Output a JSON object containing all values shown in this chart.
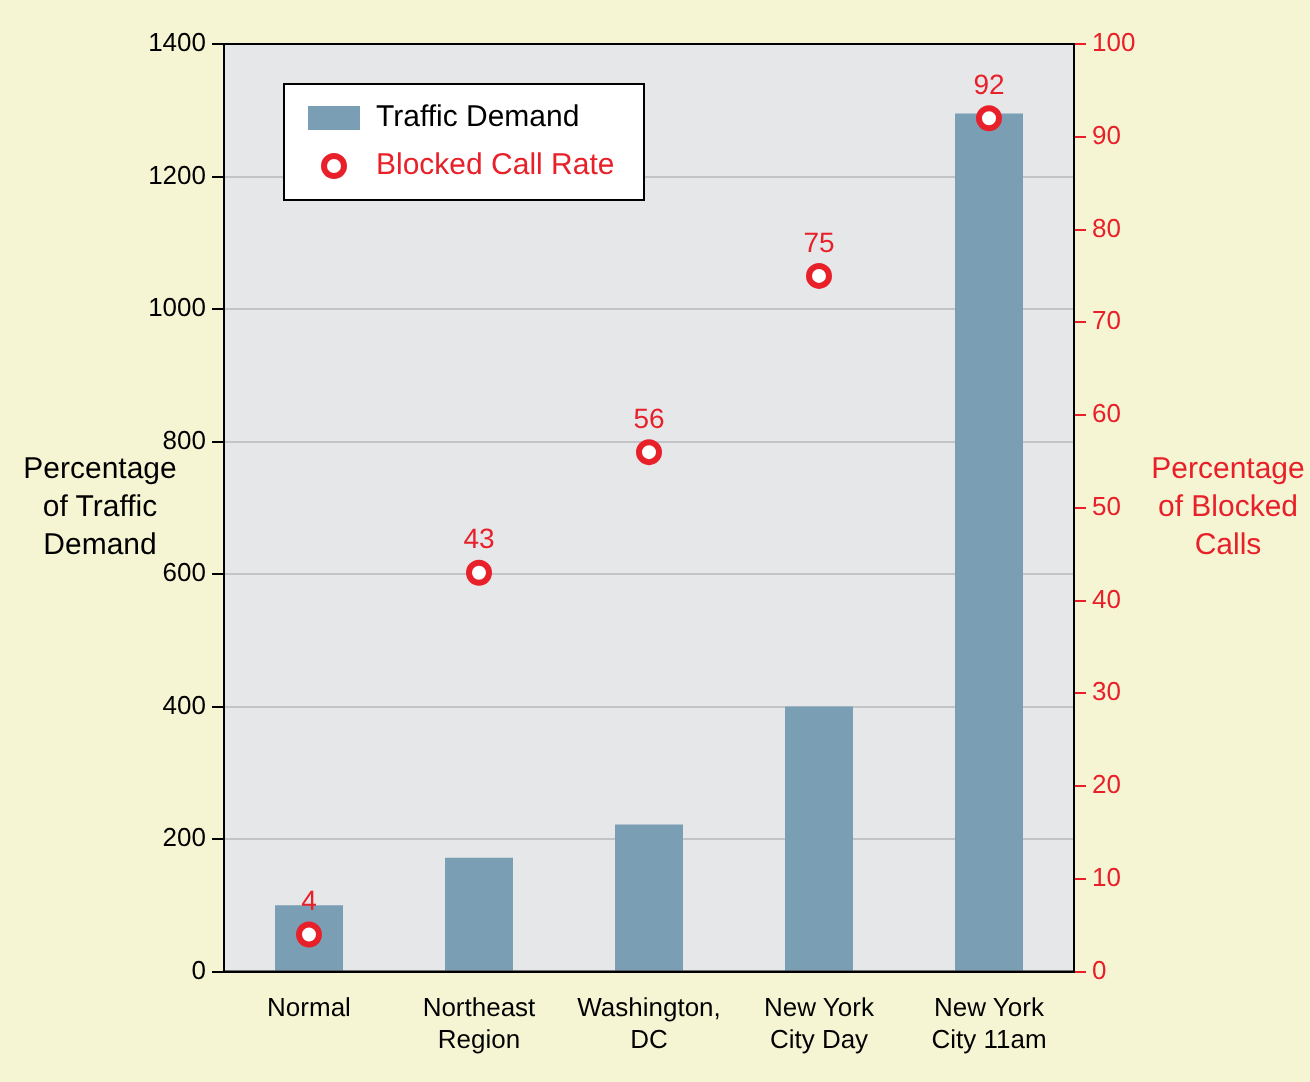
{
  "chart_data": {
    "type": "bar",
    "categories": [
      "Normal",
      "Northeast Region",
      "Washington, DC",
      "New York City Day",
      "New York City 11am"
    ],
    "ylabel": "Percentage of Traffic Demand",
    "y2label": "Percentage of Blocked Calls",
    "ylim": [
      0,
      1400
    ],
    "yticks": [
      0,
      200,
      400,
      600,
      800,
      1000,
      1200,
      1400
    ],
    "y2lim": [
      0,
      100
    ],
    "y2ticks": [
      0,
      10,
      20,
      30,
      40,
      50,
      60,
      70,
      80,
      90,
      100
    ],
    "grid": "y",
    "legend": "top left",
    "series": [
      {
        "name": "Traffic Demand",
        "color": "#7a9fb5",
        "values": [
          100,
          172,
          222,
          400,
          1295
        ]
      },
      {
        "name": "Blocked Call Rate",
        "type": "scatter",
        "axis": "y2",
        "color": "#e8202a",
        "marker": "circle",
        "values": [
          4,
          43,
          56,
          75,
          92
        ],
        "value_labels": [
          "4",
          "43",
          "56",
          "75",
          "92"
        ]
      }
    ]
  }
}
